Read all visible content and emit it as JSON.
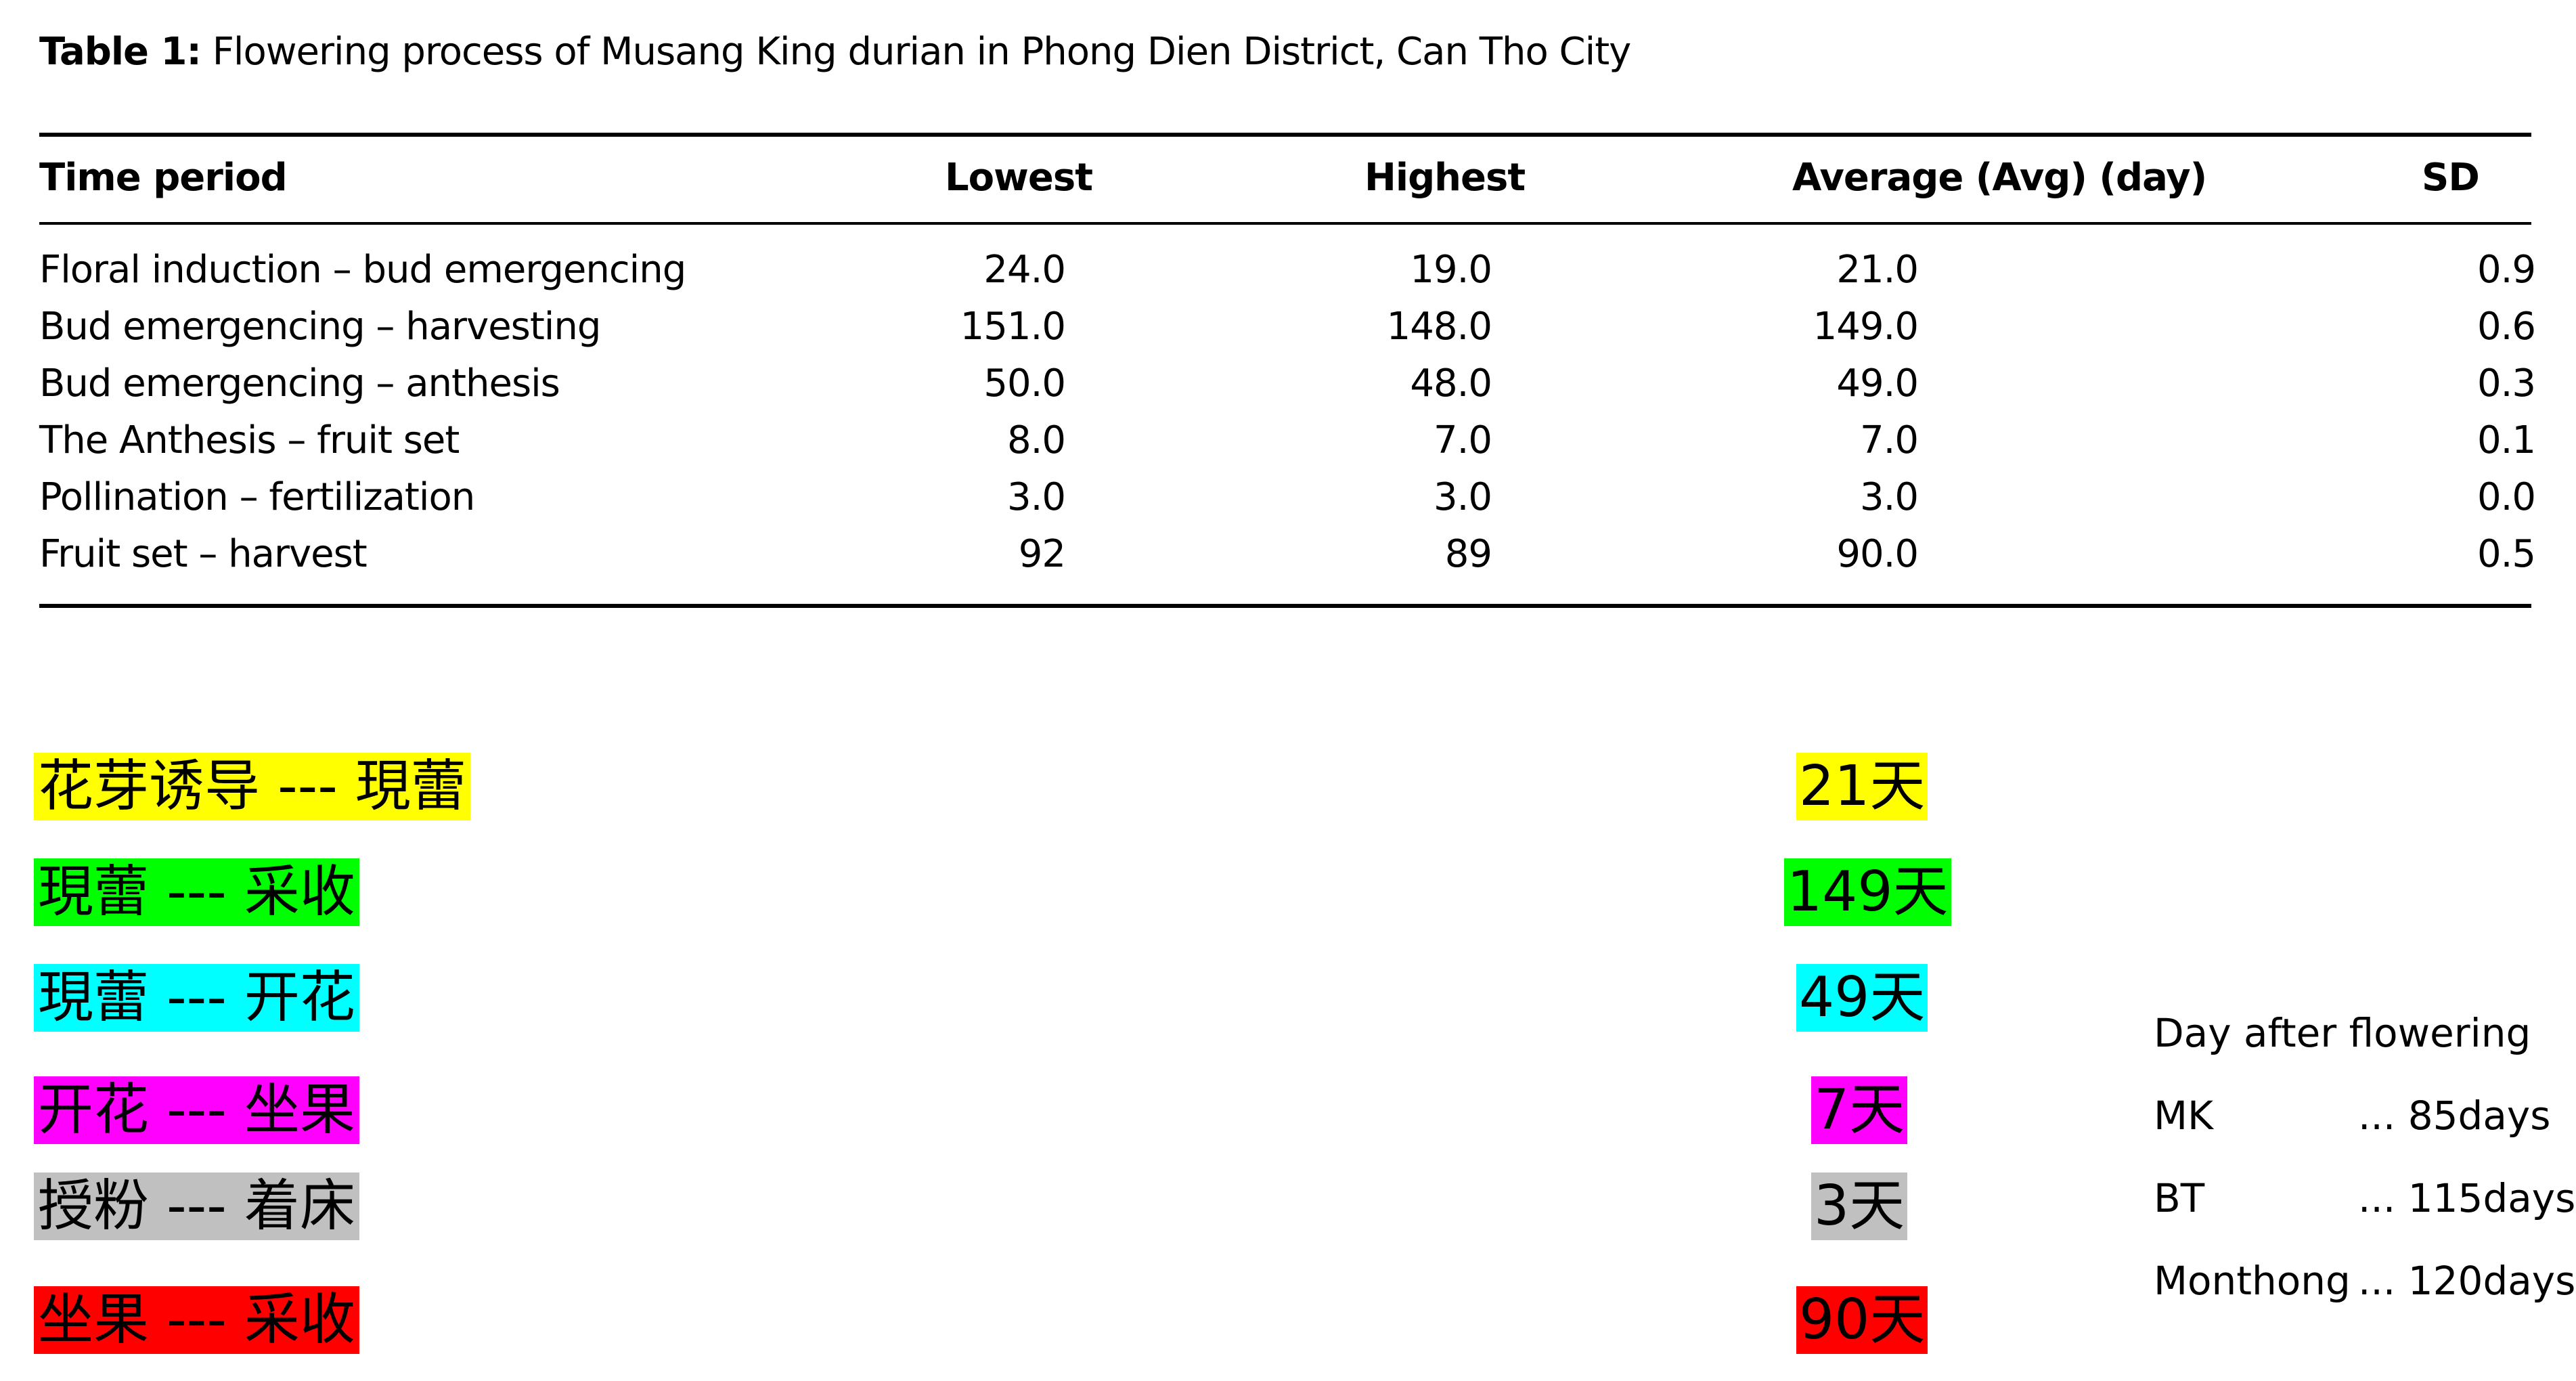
{
  "caption": {
    "label": "Table 1:",
    "text": "Flowering process of Musang King durian in Phong Dien District, Can Tho City"
  },
  "table": {
    "headers": {
      "period": "Time period",
      "lowest": "Lowest",
      "highest": "Highest",
      "average": "Average (Avg) (day)",
      "sd": "SD"
    },
    "rows": [
      {
        "period": "Floral induction – bud emergencing",
        "lowest": "24.0",
        "highest": "19.0",
        "average": "21.0",
        "sd": "0.9"
      },
      {
        "period": "Bud emergencing – harvesting",
        "lowest": "151.0",
        "highest": "148.0",
        "average": "149.0",
        "sd": "0.6"
      },
      {
        "period": "Bud emergencing – anthesis",
        "lowest": "50.0",
        "highest": "48.0",
        "average": "49.0",
        "sd": "0.3"
      },
      {
        "period": "The Anthesis – fruit set",
        "lowest": "8.0",
        "highest": "7.0",
        "average": "7.0",
        "sd": "0.1"
      },
      {
        "period": "Pollination – fertilization",
        "lowest": "3.0",
        "highest": "3.0",
        "average": "3.0",
        "sd": "0.0"
      },
      {
        "period": "Fruit set – harvest",
        "lowest": "92",
        "highest": "89",
        "average": "90.0",
        "sd": "0.5"
      }
    ]
  },
  "stages_cn": [
    {
      "label": "花芽诱导 --- 現蕾",
      "days": "21天",
      "color": "#ffff00"
    },
    {
      "label": "現蕾 --- 采收",
      "days": "149天",
      "color": "#00ff00"
    },
    {
      "label": "現蕾 --- 开花",
      "days": "49天",
      "color": "#00ffff"
    },
    {
      "label": "开花 --- 坐果",
      "days": "7天",
      "color": "#ff00ff"
    },
    {
      "label": "授粉 --- 着床",
      "days": "3天",
      "color": "#c0c0c0"
    },
    {
      "label": "坐果 --- 采收",
      "days": "90天",
      "color": "#ff0000"
    }
  ],
  "notes": {
    "title": "Day after flowering",
    "items": [
      {
        "name": "MK",
        "days": "... 85days"
      },
      {
        "name": "BT",
        "days": "... 115days"
      },
      {
        "name": "Monthong",
        "days": "... 120days"
      }
    ]
  }
}
